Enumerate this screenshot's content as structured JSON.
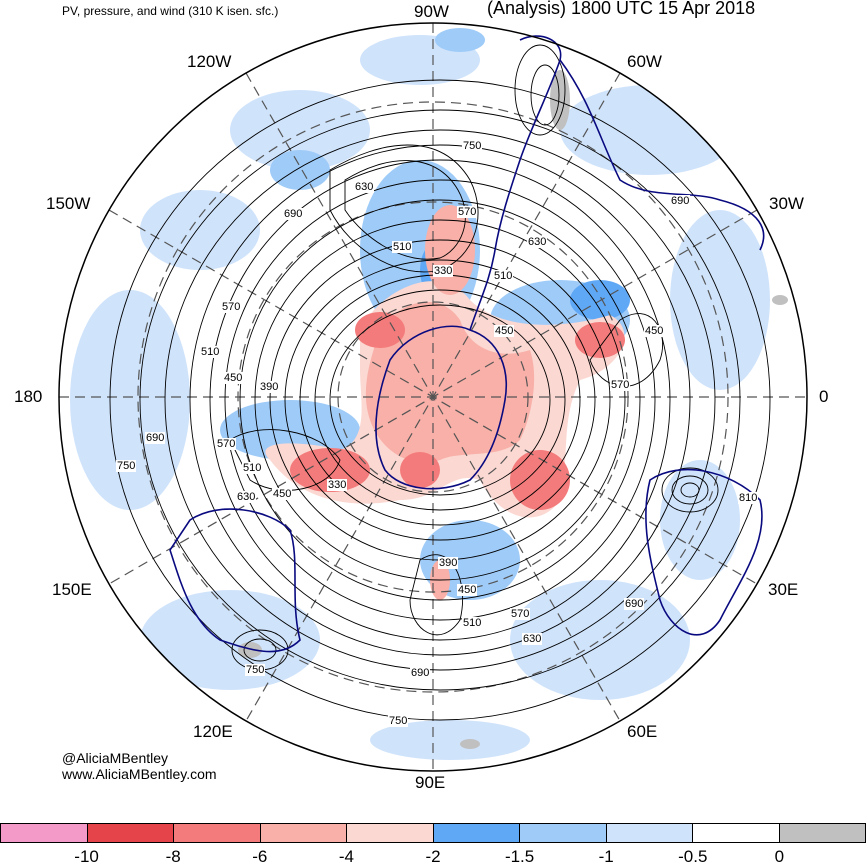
{
  "header": {
    "subtitle": "PV, pressure, and wind (310 K isen. sfc.)",
    "title": "(Analysis) 1800 UTC 15 Apr 2018"
  },
  "longitude_labels": {
    "lon_90w": "90W",
    "lon_120w": "120W",
    "lon_60w": "60W",
    "lon_150w": "150W",
    "lon_30w": "30W",
    "lon_180": "180",
    "lon_0": "0",
    "lon_150e": "150E",
    "lon_30e": "30E",
    "lon_120e": "120E",
    "lon_60e": "60E",
    "lon_90e": "90E"
  },
  "contour_labels": [
    "750",
    "630",
    "570",
    "690",
    "510",
    "330",
    "510",
    "630",
    "690",
    "570",
    "450",
    "450",
    "510",
    "390",
    "570",
    "450",
    "690",
    "570",
    "510",
    "750",
    "630",
    "450",
    "330",
    "810",
    "390",
    "450",
    "690",
    "510",
    "570",
    "630",
    "690",
    "750",
    "750"
  ],
  "credits": {
    "line1": "@AliciaMBentley",
    "line2": "www.AliciaMBentley.com"
  },
  "colorbar": {
    "colors": [
      "#f49ac8",
      "#e4444a",
      "#f47b7b",
      "#f8b0a8",
      "#fbd8d2",
      "#5fa8f5",
      "#9fcbf8",
      "#cfe3fb",
      "#ffffff",
      "#c0c0c0"
    ],
    "labels": [
      "-10",
      "-8",
      "-6",
      "-4",
      "-2",
      "-1.5",
      "-1",
      "-0.5",
      "0"
    ]
  },
  "colors": {
    "coastline": "#0a0a80",
    "contour": "#000000",
    "graticule": "#555555"
  }
}
